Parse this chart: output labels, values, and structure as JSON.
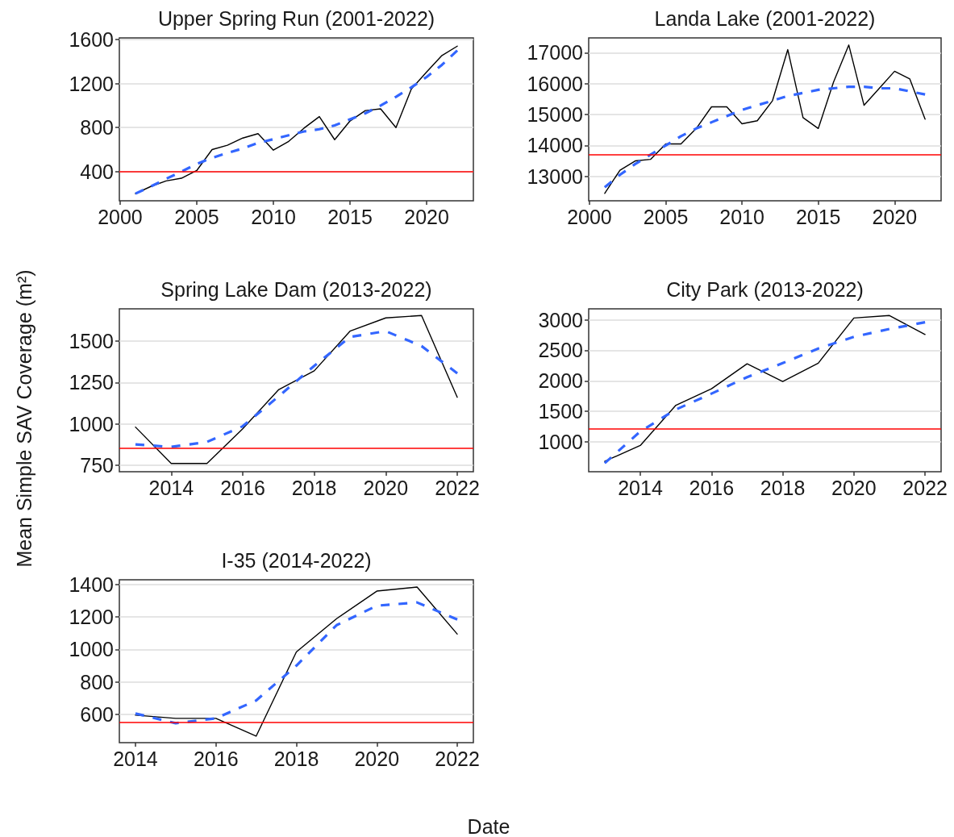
{
  "chart_data": [
    {
      "type": "line",
      "title": "Upper Spring Run (2001-2022)",
      "x": [
        2001,
        2002,
        2003,
        2004,
        2005,
        2006,
        2007,
        2008,
        2009,
        2010,
        2011,
        2012,
        2013,
        2014,
        2015,
        2016,
        2017,
        2018,
        2019,
        2020,
        2021,
        2022
      ],
      "series": [
        {
          "color": "#000000",
          "line_style": "solid",
          "values": [
            200,
            265,
            315,
            340,
            410,
            600,
            640,
            705,
            745,
            595,
            675,
            795,
            900,
            690,
            860,
            955,
            970,
            800,
            1150,
            1305,
            1455,
            1540
          ]
        },
        {
          "color": "#3366ff",
          "line_style": "dashed",
          "values": [
            200,
            265,
            335,
            400,
            470,
            525,
            570,
            610,
            660,
            695,
            730,
            765,
            785,
            820,
            875,
            930,
            1000,
            1080,
            1165,
            1260,
            1370,
            1500
          ]
        }
      ],
      "xlim": [
        1999.95,
        2023.05
      ],
      "ylim": [
        135,
        1615
      ],
      "xticks": [
        2000,
        2005,
        2010,
        2015,
        2020
      ],
      "yticks": [
        400,
        800,
        1200,
        1600
      ],
      "grid": "y",
      "marker": "none",
      "ref_lines": [
        {
          "axis": "y",
          "value": 400,
          "color": "#ff0000"
        }
      ]
    },
    {
      "type": "line",
      "title": "Landa Lake (2001-2022)",
      "x": [
        2001,
        2002,
        2003,
        2004,
        2005,
        2006,
        2007,
        2008,
        2009,
        2010,
        2011,
        2012,
        2013,
        2014,
        2015,
        2016,
        2017,
        2018,
        2019,
        2020,
        2021,
        2022
      ],
      "series": [
        {
          "color": "#000000",
          "line_style": "solid",
          "values": [
            12450,
            13200,
            13500,
            13550,
            14050,
            14050,
            14550,
            15250,
            15250,
            14700,
            14800,
            15450,
            17100,
            14900,
            14550,
            16050,
            17250,
            15300,
            15850,
            16400,
            16150,
            14850
          ]
        },
        {
          "color": "#3366ff",
          "line_style": "dashed",
          "values": [
            12650,
            13050,
            13400,
            13700,
            14000,
            14300,
            14550,
            14750,
            14950,
            15150,
            15300,
            15450,
            15600,
            15700,
            15800,
            15850,
            15900,
            15900,
            15850,
            15850,
            15750,
            15650
          ]
        }
      ],
      "xlim": [
        1999.95,
        2023.05
      ],
      "ylim": [
        12210,
        17480
      ],
      "xticks": [
        2000,
        2005,
        2010,
        2015,
        2020
      ],
      "yticks": [
        13000,
        14000,
        15000,
        16000,
        17000
      ],
      "grid": "y",
      "marker": "none",
      "ref_lines": [
        {
          "axis": "y",
          "value": 13700,
          "color": "#ff0000"
        }
      ]
    },
    {
      "type": "line",
      "title": "Spring Lake Dam (2013-2022)",
      "ylabel": "Mean Simple SAV Coverage (m²)",
      "x": [
        2013,
        2014,
        2015,
        2016,
        2017,
        2018,
        2019,
        2020,
        2021,
        2022
      ],
      "series": [
        {
          "color": "#000000",
          "line_style": "solid",
          "values": [
            980,
            760,
            760,
            970,
            1205,
            1320,
            1560,
            1640,
            1655,
            1160
          ]
        },
        {
          "color": "#3366ff",
          "line_style": "dashed",
          "values": [
            875,
            860,
            890,
            985,
            1165,
            1350,
            1525,
            1560,
            1470,
            1305
          ]
        }
      ],
      "xlim": [
        2012.55,
        2022.45
      ],
      "ylim": [
        710,
        1695
      ],
      "xticks": [
        2014,
        2016,
        2018,
        2020,
        2022
      ],
      "yticks": [
        750,
        1000,
        1250,
        1500
      ],
      "grid": "y",
      "marker": "none",
      "ref_lines": [
        {
          "axis": "y",
          "value": 855,
          "color": "#ff0000"
        }
      ]
    },
    {
      "type": "line",
      "title": "City Park (2013-2022)",
      "x": [
        2013,
        2014,
        2015,
        2016,
        2017,
        2018,
        2019,
        2020,
        2021,
        2022
      ],
      "series": [
        {
          "color": "#000000",
          "line_style": "solid",
          "values": [
            680,
            940,
            1600,
            1870,
            2280,
            1990,
            2290,
            3030,
            3070,
            2760
          ]
        },
        {
          "color": "#3366ff",
          "line_style": "dashed",
          "values": [
            650,
            1170,
            1530,
            1790,
            2060,
            2290,
            2530,
            2720,
            2850,
            2960
          ]
        }
      ],
      "xlim": [
        2012.55,
        2022.45
      ],
      "ylim": [
        510,
        3180
      ],
      "xticks": [
        2014,
        2016,
        2018,
        2020,
        2022
      ],
      "yticks": [
        1000,
        1500,
        2000,
        2500,
        3000
      ],
      "grid": "y",
      "marker": "none",
      "ref_lines": [
        {
          "axis": "y",
          "value": 1220,
          "color": "#ff0000"
        }
      ]
    },
    {
      "type": "line",
      "title": "I-35 (2014-2022)",
      "xlabel": "Date",
      "x": [
        2014,
        2015,
        2016,
        2017,
        2018,
        2019,
        2020,
        2021,
        2022
      ],
      "series": [
        {
          "color": "#000000",
          "line_style": "solid",
          "values": [
            595,
            575,
            575,
            465,
            985,
            1190,
            1360,
            1385,
            1095
          ]
        },
        {
          "color": "#3366ff",
          "line_style": "dashed",
          "values": [
            605,
            545,
            575,
            685,
            900,
            1150,
            1270,
            1290,
            1185
          ]
        }
      ],
      "xlim": [
        2013.6,
        2022.4
      ],
      "ylim": [
        425,
        1430
      ],
      "xticks": [
        2014,
        2016,
        2018,
        2020,
        2022
      ],
      "yticks": [
        600,
        800,
        1000,
        1200,
        1400
      ],
      "grid": "y",
      "marker": "none",
      "ref_lines": [
        {
          "axis": "y",
          "value": 550,
          "color": "#ff0000"
        }
      ]
    }
  ]
}
